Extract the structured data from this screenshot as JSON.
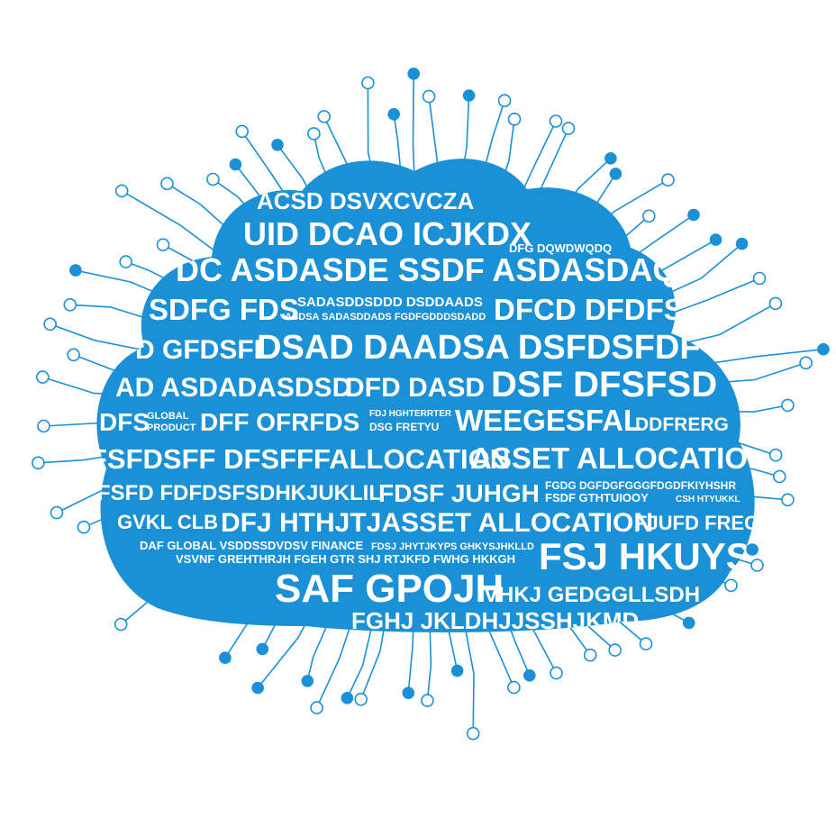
{
  "palette": {
    "background": "#ffffff",
    "accent": "#1a90d6",
    "text": "#ffffff"
  },
  "words": [
    "ACSD DSVXCVCZA",
    "UID DCAO ICJKDX",
    "DFG DQWDWQDQ",
    "DC ASDASDE SSDF ASDASDAQD",
    "SADASDDSDDD DSDDAADS",
    "ASDSA SADASDDADS FGDFGDDDSDADD",
    "SDFG FDS",
    "DFCD DFDFSI",
    "D GFDSFL",
    "DSAD DAADSA DSFDSFDF",
    "AD ASDADASDSD",
    "DFD DASD",
    "DSF DFSFSD",
    "DFS",
    "GLOBAL",
    "PRODUCT",
    "DFF OFRFDS",
    "FDJ HGHTERRTER",
    "DSG FRETYU",
    "WEEGESFAL",
    "DDFRERG",
    "FSFDSFF DFSFFFALLOCATION",
    "ASSET ALLOCATION",
    "FSFD FDFDSFSDHKJUKLIL",
    "FDSF JUHGH",
    "FGDG DGFDGFGGGFDGDFKIYHSHR",
    "FSDF GTHTUIOOY",
    "CSH HTYUKKL",
    "GVKL CLB",
    "DFJ HTHJTJASSET ALLOCATION",
    "FJUFD FREG",
    "DAF GLOBAL VSDDSSDVDSV FINANCE",
    "FDSJ JHYTJKYPS GHKYSJHKLLD",
    "VSVNF GREHTHRJH FGEH GTR SHJ RTJKFD FWHG HKKGH",
    "FSJ HKUYSS",
    "SAF GPOJH",
    "VHKJ GEDGGLLSDH",
    "FGHJ JKLDHJJSSHJKMD"
  ]
}
